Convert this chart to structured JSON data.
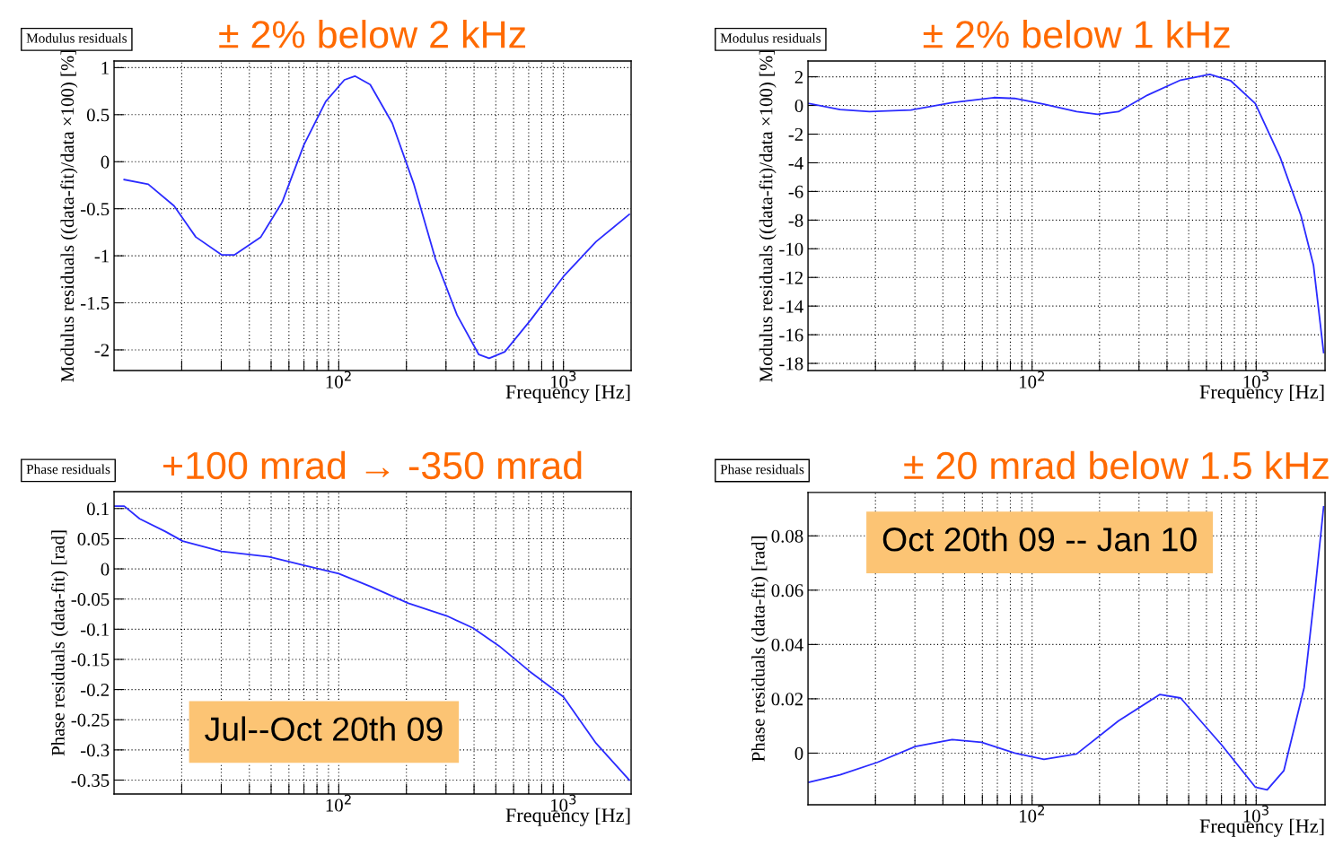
{
  "chart_data": [
    {
      "type": "line",
      "title": "Modulus residuals",
      "subtitle": "± 2% below 2 kHz",
      "xlabel": "Frequency [Hz]",
      "ylabel": "Modulus residuals ((data-fit)/data ×100) [%]",
      "log": "x",
      "grid": true,
      "marker": "none",
      "line_style": "solid",
      "xlim": [
        10,
        2000
      ],
      "ylim": [
        -2.22,
        1.07
      ],
      "xticks": [
        {
          "value": 20,
          "label": null
        },
        {
          "value": 30,
          "label": null
        },
        {
          "value": 40,
          "label": null
        },
        {
          "value": 50,
          "label": null
        },
        {
          "value": 60,
          "label": null
        },
        {
          "value": 70,
          "label": null
        },
        {
          "value": 80,
          "label": null
        },
        {
          "value": 90,
          "label": null
        },
        {
          "value": 100,
          "label": "10$^{2}$"
        },
        {
          "value": 200,
          "label": null
        },
        {
          "value": 300,
          "label": null
        },
        {
          "value": 400,
          "label": null
        },
        {
          "value": 500,
          "label": null
        },
        {
          "value": 600,
          "label": null
        },
        {
          "value": 700,
          "label": null
        },
        {
          "value": 800,
          "label": null
        },
        {
          "value": 900,
          "label": null
        },
        {
          "value": 1000,
          "label": "10$^{3}$"
        }
      ],
      "yticks": [
        -2,
        -1.5,
        -1,
        -0.5,
        0,
        0.5,
        1
      ],
      "series": [
        {
          "color": "#2b2bff",
          "x": [
            11.1,
            14.2,
            18.5,
            23.1,
            30.1,
            34.4,
            45,
            56,
            70,
            87.5,
            106,
            118,
            138,
            173,
            216,
            269,
            336,
            420,
            467,
            548,
            716,
            1000,
            1396,
            1963
          ],
          "values": [
            -0.19,
            -0.24,
            -0.47,
            -0.8,
            -0.99,
            -0.99,
            -0.8,
            -0.43,
            0.18,
            0.64,
            0.87,
            0.91,
            0.82,
            0.41,
            -0.24,
            -1.03,
            -1.63,
            -2.05,
            -2.09,
            -2.02,
            -1.68,
            -1.22,
            -0.85,
            -0.56
          ]
        }
      ]
    },
    {
      "type": "line",
      "title": "Modulus residuals",
      "subtitle": "± 2% below 1 kHz",
      "xlabel": "Frequency [Hz]",
      "ylabel": "Modulus residuals ((data-fit)/data ×100) [%]",
      "log": "x",
      "grid": true,
      "marker": "none",
      "line_style": "solid",
      "xlim": [
        10,
        2030
      ],
      "ylim": [
        -18.5,
        3.1
      ],
      "xticks": [
        {
          "value": 20,
          "label": null
        },
        {
          "value": 30,
          "label": null
        },
        {
          "value": 40,
          "label": null
        },
        {
          "value": 50,
          "label": null
        },
        {
          "value": 60,
          "label": null
        },
        {
          "value": 70,
          "label": null
        },
        {
          "value": 80,
          "label": null
        },
        {
          "value": 90,
          "label": null
        },
        {
          "value": 100,
          "label": "10$^{2}$"
        },
        {
          "value": 200,
          "label": null
        },
        {
          "value": 300,
          "label": null
        },
        {
          "value": 400,
          "label": null
        },
        {
          "value": 500,
          "label": null
        },
        {
          "value": 600,
          "label": null
        },
        {
          "value": 700,
          "label": null
        },
        {
          "value": 800,
          "label": null
        },
        {
          "value": 900,
          "label": null
        },
        {
          "value": 1000,
          "label": "10$^{3}$"
        }
      ],
      "yticks": [
        -18,
        -16,
        -14,
        -12,
        -10,
        -8,
        -6,
        -4,
        -2,
        0,
        2
      ],
      "series": [
        {
          "color": "#2b2bff",
          "x": [
            10.1,
            13.9,
            18.8,
            28.8,
            44,
            67.5,
            83.6,
            113,
            158,
            196,
            243,
            327,
            460,
            621,
            768,
            991,
            1280,
            1585,
            1803,
            2000
          ],
          "values": [
            0.14,
            -0.29,
            -0.43,
            -0.32,
            0.2,
            0.55,
            0.49,
            0.09,
            -0.43,
            -0.61,
            -0.43,
            0.72,
            1.77,
            2.17,
            1.74,
            0.14,
            -3.62,
            -7.68,
            -11.16,
            -17.25
          ]
        }
      ]
    },
    {
      "type": "line",
      "title": "Phase residuals",
      "subtitle": "+100 mrad → -350 mrad",
      "xlabel": "Frequency [Hz]",
      "ylabel": "Phase residuals (data-fit) [rad]",
      "log": "x",
      "grid": true,
      "marker": "none",
      "line_style": "solid",
      "annotations": [
        "Jul--Oct 20th 09"
      ],
      "xlim": [
        10,
        2000
      ],
      "ylim": [
        -0.373,
        0.128
      ],
      "xticks": [
        {
          "value": 20,
          "label": null
        },
        {
          "value": 30,
          "label": null
        },
        {
          "value": 40,
          "label": null
        },
        {
          "value": 50,
          "label": null
        },
        {
          "value": 60,
          "label": null
        },
        {
          "value": 70,
          "label": null
        },
        {
          "value": 80,
          "label": null
        },
        {
          "value": 90,
          "label": null
        },
        {
          "value": 100,
          "label": "10$^{2}$"
        },
        {
          "value": 200,
          "label": null
        },
        {
          "value": 300,
          "label": null
        },
        {
          "value": 400,
          "label": null
        },
        {
          "value": 500,
          "label": null
        },
        {
          "value": 600,
          "label": null
        },
        {
          "value": 700,
          "label": null
        },
        {
          "value": 800,
          "label": null
        },
        {
          "value": 900,
          "label": null
        },
        {
          "value": 1000,
          "label": "10$^{3}$"
        }
      ],
      "yticks": [
        -0.35,
        -0.3,
        -0.25,
        -0.2,
        -0.15,
        -0.1,
        -0.05,
        0,
        0.05,
        0.1
      ],
      "series": [
        {
          "color": "#2b2bff",
          "x": [
            10.0,
            11.1,
            13.0,
            16.9,
            20.2,
            30.1,
            49,
            70,
            100,
            138,
            204,
            303,
            396,
            518,
            708,
            1000,
            1396,
            1963
          ],
          "values": [
            0.104,
            0.104,
            0.083,
            0.062,
            0.046,
            0.029,
            0.02,
            0.006,
            -0.008,
            -0.029,
            -0.057,
            -0.078,
            -0.098,
            -0.128,
            -0.17,
            -0.212,
            -0.289,
            -0.35
          ]
        }
      ]
    },
    {
      "type": "line",
      "title": "Phase residuals",
      "subtitle": "± 20 mrad below 1.5 kHz",
      "xlabel": "Frequency [Hz]",
      "ylabel": "Phase residuals (data-fit) [rad]",
      "log": "x",
      "grid": true,
      "marker": "none",
      "line_style": "solid",
      "annotations": [
        "Oct 20th 09 -- Jan 10"
      ],
      "xlim": [
        10,
        2030
      ],
      "ylim": [
        -0.019,
        0.096
      ],
      "xticks": [
        {
          "value": 20,
          "label": null
        },
        {
          "value": 30,
          "label": null
        },
        {
          "value": 40,
          "label": null
        },
        {
          "value": 50,
          "label": null
        },
        {
          "value": 60,
          "label": null
        },
        {
          "value": 70,
          "label": null
        },
        {
          "value": 80,
          "label": null
        },
        {
          "value": 90,
          "label": null
        },
        {
          "value": 100,
          "label": "10$^{2}$"
        },
        {
          "value": 200,
          "label": null
        },
        {
          "value": 300,
          "label": null
        },
        {
          "value": 400,
          "label": null
        },
        {
          "value": 500,
          "label": null
        },
        {
          "value": 600,
          "label": null
        },
        {
          "value": 700,
          "label": null
        },
        {
          "value": 800,
          "label": null
        },
        {
          "value": 900,
          "label": null
        },
        {
          "value": 1000,
          "label": "10$^{3}$"
        }
      ],
      "yticks": [
        0,
        0.02,
        0.04,
        0.06,
        0.08
      ],
      "series": [
        {
          "color": "#2b2bff",
          "x": [
            10.1,
            13.9,
            20.4,
            30.0,
            44,
            59.5,
            83.6,
            113,
            158,
            243,
            372,
            460,
            705,
            991,
            1120,
            1330,
            1638,
            1820,
            2000
          ],
          "values": [
            -0.0107,
            -0.008,
            -0.0034,
            0.0024,
            0.005,
            0.004,
            0.0,
            -0.0023,
            -0.0003,
            0.0119,
            0.0216,
            0.0203,
            0.0028,
            -0.0125,
            -0.0135,
            -0.0064,
            0.0242,
            0.0578,
            0.0907
          ]
        }
      ]
    }
  ]
}
